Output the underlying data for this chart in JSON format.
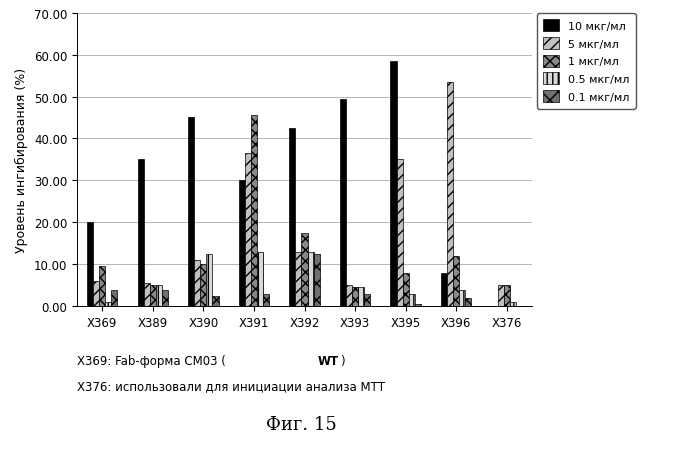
{
  "categories": [
    "X369",
    "X389",
    "X390",
    "X391",
    "X392",
    "X393",
    "X395",
    "X396",
    "X376"
  ],
  "series": {
    "10 мкг/мл": [
      20.0,
      35.0,
      45.0,
      30.0,
      42.5,
      49.5,
      58.5,
      8.0,
      0.0
    ],
    "5 мкг/мл": [
      6.0,
      5.5,
      11.0,
      36.5,
      13.0,
      5.0,
      35.0,
      53.5,
      5.0
    ],
    "1 мкг/мл": [
      9.5,
      5.0,
      10.0,
      45.5,
      17.5,
      4.5,
      8.0,
      12.0,
      5.0
    ],
    "0.5 мкг/мл": [
      1.0,
      5.0,
      12.5,
      13.0,
      13.0,
      4.5,
      3.0,
      4.0,
      1.0
    ],
    "0.1 мкг/мл": [
      4.0,
      4.0,
      2.5,
      3.0,
      12.5,
      3.0,
      0.5,
      2.0,
      0.0
    ]
  },
  "fill_colors": [
    "#000000",
    "#c0c0c0",
    "#888888",
    "#d8d8d8",
    "#707070"
  ],
  "hatch_patterns": [
    "",
    "///",
    "xxx",
    "|||",
    "xx"
  ],
  "edge_colors": [
    "#000000",
    "#000000",
    "#000000",
    "#000000",
    "#000000"
  ],
  "ylabel": "Уровень ингибирования (%)",
  "ylim": [
    0,
    70
  ],
  "yticks": [
    0.0,
    10.0,
    20.0,
    30.0,
    40.0,
    50.0,
    60.0,
    70.0
  ],
  "ytick_labels": [
    "0.00",
    "10.00",
    "20.00",
    "30.00",
    "40.00",
    "50.00",
    "60.00",
    "70.00"
  ],
  "note_prefix": "X369: Fab-форма СМ03 (",
  "note_bold": "WT",
  "note_suffix": ")",
  "note_line2": "X376: использовали для инициации анализа МТТ",
  "figure_label": "Фиг. 15",
  "background_color": "#ffffff",
  "bar_width": 0.12,
  "grid_color": "#aaaaaa",
  "legend_fontsize": 8,
  "axis_fontsize": 8.5,
  "ylabel_fontsize": 9
}
